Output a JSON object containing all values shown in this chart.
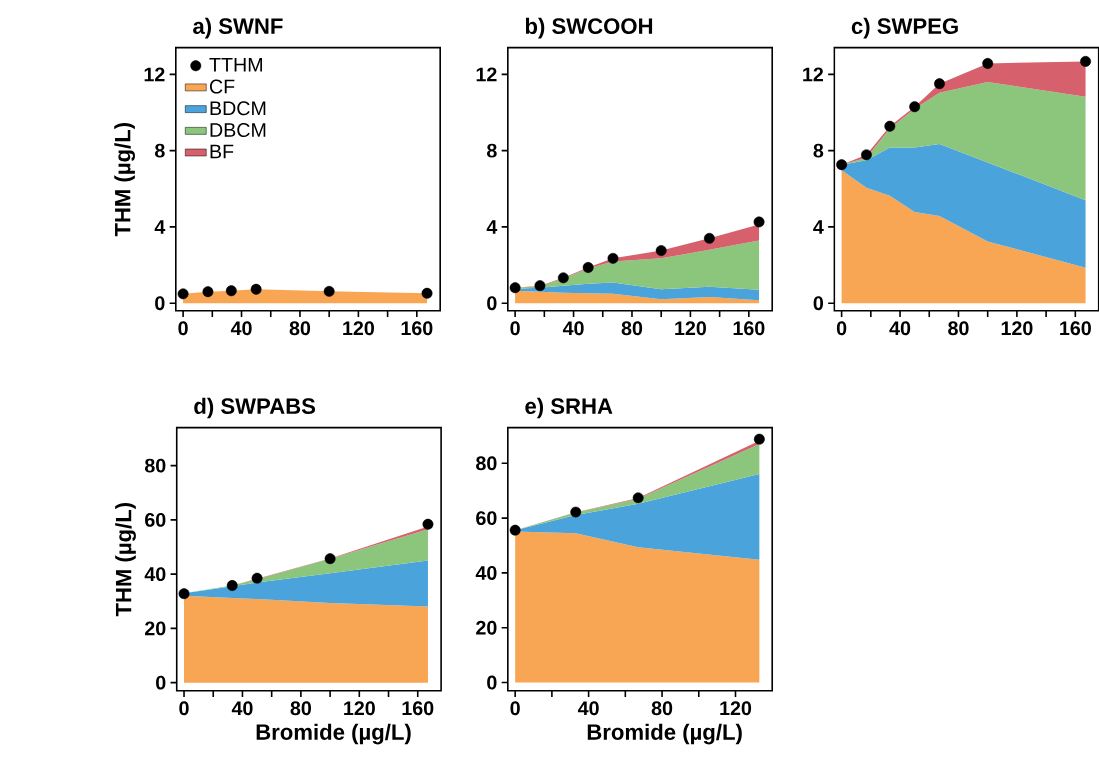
{
  "chart_data": [
    {
      "type": "area",
      "title": "a) SWNF",
      "ylabel": "THM (µg/L)",
      "stacked": true,
      "legend": "top left",
      "x": [
        0,
        17,
        33,
        50,
        100,
        167
      ],
      "xlim": [
        -5,
        176
      ],
      "ylim": [
        -0.4,
        13.4
      ],
      "xticks": [
        0,
        {
          "value": 20,
          "label": null
        },
        40,
        {
          "value": 60,
          "label": null
        },
        80,
        {
          "value": 100,
          "label": null
        },
        120,
        {
          "value": 140,
          "label": null
        },
        160
      ],
      "yticks": [
        0,
        4,
        8,
        12
      ],
      "series": [
        {
          "name": "CF",
          "color": "#f8a654",
          "values": [
            0.5,
            0.6,
            0.65,
            0.73,
            0.62,
            0.52
          ]
        },
        {
          "name": "BDCM",
          "color": "#4ba3dc",
          "values": [
            null,
            null,
            null,
            null,
            null,
            null
          ]
        },
        {
          "name": "DBCM",
          "color": "#8cc57c",
          "values": [
            null,
            null,
            null,
            null,
            null,
            null
          ]
        },
        {
          "name": "BF",
          "color": "#d7606d",
          "values": [
            null,
            null,
            null,
            null,
            null,
            null
          ]
        },
        {
          "name": "TTHM",
          "type": "scatter",
          "marker": "circle",
          "color": "#000000",
          "values": [
            0.49,
            0.6,
            0.65,
            0.73,
            0.62,
            0.52
          ]
        }
      ]
    },
    {
      "type": "area",
      "title": "b) SWCOOH",
      "stacked": true,
      "x": [
        0,
        17,
        33,
        50,
        67,
        100,
        133,
        167
      ],
      "xlim": [
        -5,
        176
      ],
      "ylim": [
        -0.4,
        13.4
      ],
      "xticks": [
        0,
        {
          "value": 20,
          "label": null
        },
        40,
        {
          "value": 60,
          "label": null
        },
        80,
        {
          "value": 100,
          "label": null
        },
        120,
        {
          "value": 140,
          "label": null
        },
        160
      ],
      "yticks": [
        0,
        4,
        8,
        12
      ],
      "series": [
        {
          "color": "#f8a654",
          "values": [
            0.65,
            0.6,
            0.55,
            0.52,
            0.49,
            0.21,
            0.32,
            0.16
          ]
        },
        {
          "color": "#4ba3dc",
          "values": [
            0.11,
            0.21,
            0.37,
            0.5,
            0.6,
            0.52,
            0.54,
            0.54
          ]
        },
        {
          "color": "#8cc57c",
          "values": [
            0.05,
            0.08,
            0.38,
            0.8,
            1.1,
            1.62,
            1.94,
            2.59
          ]
        },
        {
          "color": "#d7606d",
          "values": [
            0,
            0.03,
            0.03,
            0.05,
            0.16,
            0.41,
            0.6,
            0.84
          ]
        },
        {
          "type": "scatter",
          "marker": "circle",
          "color": "#000000",
          "values": [
            0.81,
            0.92,
            1.33,
            1.87,
            2.35,
            2.76,
            3.4,
            4.26
          ]
        }
      ]
    },
    {
      "type": "area",
      "title": "c) SWPEG",
      "stacked": true,
      "x": [
        0,
        17,
        33,
        50,
        67,
        100,
        167
      ],
      "xlim": [
        -5,
        176
      ],
      "ylim": [
        -0.4,
        13.4
      ],
      "xticks": [
        0,
        {
          "value": 20,
          "label": null
        },
        40,
        {
          "value": 60,
          "label": null
        },
        80,
        {
          "value": 100,
          "label": null
        },
        120,
        {
          "value": 140,
          "label": null
        },
        160
      ],
      "yticks": [
        0,
        4,
        8,
        12
      ],
      "series": [
        {
          "color": "#f8a654",
          "values": [
            6.97,
            6.05,
            5.64,
            4.78,
            4.57,
            3.24,
            1.86
          ]
        },
        {
          "color": "#4ba3dc",
          "values": [
            0.29,
            1.45,
            2.52,
            3.38,
            3.78,
            4.14,
            3.54
          ]
        },
        {
          "color": "#8cc57c",
          "values": [
            0,
            0.12,
            1.0,
            2.04,
            2.68,
            4.22,
            5.42
          ]
        },
        {
          "color": "#d7606d",
          "values": [
            0,
            0.16,
            0.12,
            0.1,
            0.48,
            0.97,
            1.86
          ]
        },
        {
          "type": "scatter",
          "marker": "circle",
          "color": "#000000",
          "values": [
            7.26,
            7.78,
            9.28,
            10.3,
            11.51,
            12.57,
            12.68
          ]
        }
      ]
    },
    {
      "type": "area",
      "title": "d) SWPABS",
      "ylabel": "THM (µg/L)",
      "xlabel": "Bromide (µg/L)",
      "stacked": true,
      "x": [
        0,
        33,
        50,
        100,
        167
      ],
      "xlim": [
        -5,
        176
      ],
      "ylim": [
        -3,
        94
      ],
      "xticks": [
        0,
        {
          "value": 20,
          "label": null
        },
        40,
        {
          "value": 60,
          "label": null
        },
        80,
        {
          "value": 100,
          "label": null
        },
        120,
        {
          "value": 140,
          "label": null
        },
        160
      ],
      "yticks": [
        0,
        20,
        40,
        60,
        80
      ],
      "series": [
        {
          "color": "#f8a654",
          "values": [
            32.0,
            31.2,
            30.8,
            29.4,
            28.1
          ]
        },
        {
          "color": "#4ba3dc",
          "values": [
            1.0,
            4.3,
            6.1,
            10.9,
            16.9
          ]
        },
        {
          "color": "#8cc57c",
          "values": [
            0,
            0.3,
            1.2,
            5.4,
            11.5
          ]
        },
        {
          "color": "#d7606d",
          "values": [
            0,
            0,
            0.2,
            0.1,
            1.1
          ]
        },
        {
          "type": "scatter",
          "marker": "circle",
          "color": "#000000",
          "values": [
            32.8,
            35.8,
            38.5,
            45.7,
            58.4
          ]
        }
      ]
    },
    {
      "type": "area",
      "title": "e) SRHA",
      "xlabel": "Bromide (µg/L)",
      "stacked": true,
      "x": [
        0,
        33,
        67,
        133
      ],
      "xlim": [
        -4,
        140
      ],
      "ylim": [
        -3,
        93
      ],
      "xticks": [
        0,
        {
          "value": 20,
          "label": null
        },
        40,
        {
          "value": 60,
          "label": null
        },
        80,
        {
          "value": 100,
          "label": null
        },
        120
      ],
      "yticks": [
        0,
        20,
        40,
        60,
        80
      ],
      "series": [
        {
          "color": "#f8a654",
          "values": [
            55.1,
            54.5,
            49.4,
            44.8
          ]
        },
        {
          "color": "#4ba3dc",
          "values": [
            0.5,
            6.6,
            15.8,
            31.3
          ]
        },
        {
          "color": "#8cc57c",
          "values": [
            0,
            0.9,
            1.9,
            10.9
          ]
        },
        {
          "color": "#d7606d",
          "values": [
            0,
            0.1,
            0.2,
            1.2
          ]
        },
        {
          "type": "scatter",
          "marker": "circle",
          "color": "#000000",
          "values": [
            55.6,
            62.2,
            67.4,
            88.8
          ]
        }
      ]
    }
  ]
}
